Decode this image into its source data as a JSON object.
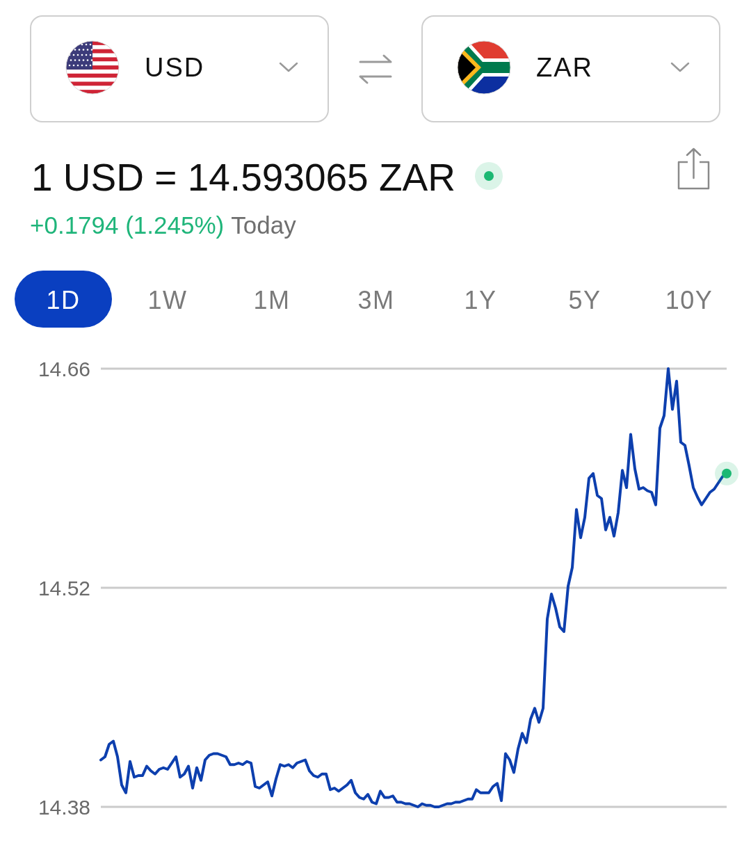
{
  "chart_data": {
    "type": "line",
    "title": "1 USD = 14.593065 ZAR",
    "subtitle": "+0.1794 (1.245%)",
    "annotations": [
      "USD",
      "ZAR",
      "Today",
      "1D",
      "1W",
      "1M",
      "3M",
      "1Y",
      "5Y",
      "10Y"
    ],
    "categories": [
      null,
      null,
      null,
      null,
      null,
      null,
      null,
      null,
      null,
      null,
      null,
      null,
      null,
      null,
      null,
      null,
      null,
      null,
      null,
      null,
      null,
      null,
      null,
      null,
      null,
      null,
      null,
      null,
      null,
      null,
      null,
      null,
      null,
      null,
      null,
      null,
      null,
      null,
      null,
      null,
      null,
      null,
      null,
      null,
      null,
      null,
      null,
      null,
      null,
      null,
      null,
      null,
      null,
      null,
      null,
      null,
      null,
      null,
      null,
      null,
      null,
      null,
      null,
      null,
      null,
      null,
      null,
      null,
      null,
      null,
      null,
      null,
      null,
      null,
      null,
      null,
      null,
      null,
      null,
      null,
      null,
      null,
      null,
      null,
      null,
      null,
      null,
      null,
      null,
      null,
      null,
      null,
      null,
      null,
      null,
      null,
      null,
      null,
      null,
      null,
      null,
      null,
      null,
      null,
      null,
      null,
      null,
      null,
      null,
      null,
      null,
      null,
      null,
      null,
      null,
      null,
      null,
      null,
      null,
      null,
      null,
      null,
      null,
      null,
      null,
      null,
      null,
      null,
      null,
      null,
      null,
      null,
      null,
      null,
      null,
      null,
      null,
      null,
      null,
      null,
      null,
      null,
      null,
      null,
      null,
      null,
      null,
      null,
      null,
      null,
      null
    ],
    "series": [
      {
        "color": "#0d3fae",
        "values": [
          14.41,
          14.412,
          14.42,
          14.422,
          14.412,
          14.394,
          14.389,
          14.409,
          14.399,
          14.4,
          14.4,
          14.406,
          14.403,
          14.401,
          14.404,
          14.405,
          14.404,
          14.408,
          14.412,
          14.399,
          14.401,
          14.406,
          14.392,
          14.405,
          14.397,
          14.41,
          14.413,
          14.414,
          14.414,
          14.413,
          14.412,
          14.407,
          14.407,
          14.408,
          14.407,
          14.409,
          14.408,
          14.393,
          14.392,
          14.394,
          14.396,
          14.387,
          14.398,
          14.407,
          14.406,
          14.407,
          14.405,
          14.408,
          14.409,
          14.41,
          14.403,
          14.4,
          14.399,
          14.401,
          14.401,
          14.391,
          14.392,
          14.39,
          14.392,
          14.394,
          14.397,
          14.389,
          14.386,
          14.385,
          14.388,
          14.383,
          14.382,
          14.39,
          14.386,
          14.386,
          14.387,
          14.383,
          14.383,
          14.382,
          14.382,
          14.381,
          14.38,
          14.382,
          14.381,
          14.381,
          14.38,
          14.38,
          14.381,
          14.382,
          14.382,
          14.383,
          14.383,
          14.384,
          14.385,
          14.385,
          14.391,
          14.389,
          14.389,
          14.389,
          14.393,
          14.395,
          14.384,
          14.414,
          14.41,
          14.402,
          14.417,
          14.427,
          14.421,
          14.436,
          14.443,
          14.434,
          14.443,
          14.5,
          14.516,
          14.507,
          14.495,
          14.492,
          14.521,
          14.533,
          14.57,
          14.552,
          14.565,
          14.59,
          14.593,
          14.579,
          14.577,
          14.557,
          14.565,
          14.553,
          14.568,
          14.595,
          14.584,
          14.618,
          14.596,
          14.583,
          14.584,
          14.582,
          14.581,
          14.573,
          14.622,
          14.63,
          14.66,
          14.634,
          14.652,
          14.613,
          14.611,
          14.598,
          14.584,
          14.578,
          14.573,
          14.577,
          14.581,
          14.583,
          14.587,
          14.591,
          14.593
        ]
      }
    ],
    "ylim": [
      14.38,
      14.66
    ],
    "yticks": [
      14.38,
      14.52,
      14.66
    ],
    "grid": "y",
    "tick_labels": "y"
  }
}
